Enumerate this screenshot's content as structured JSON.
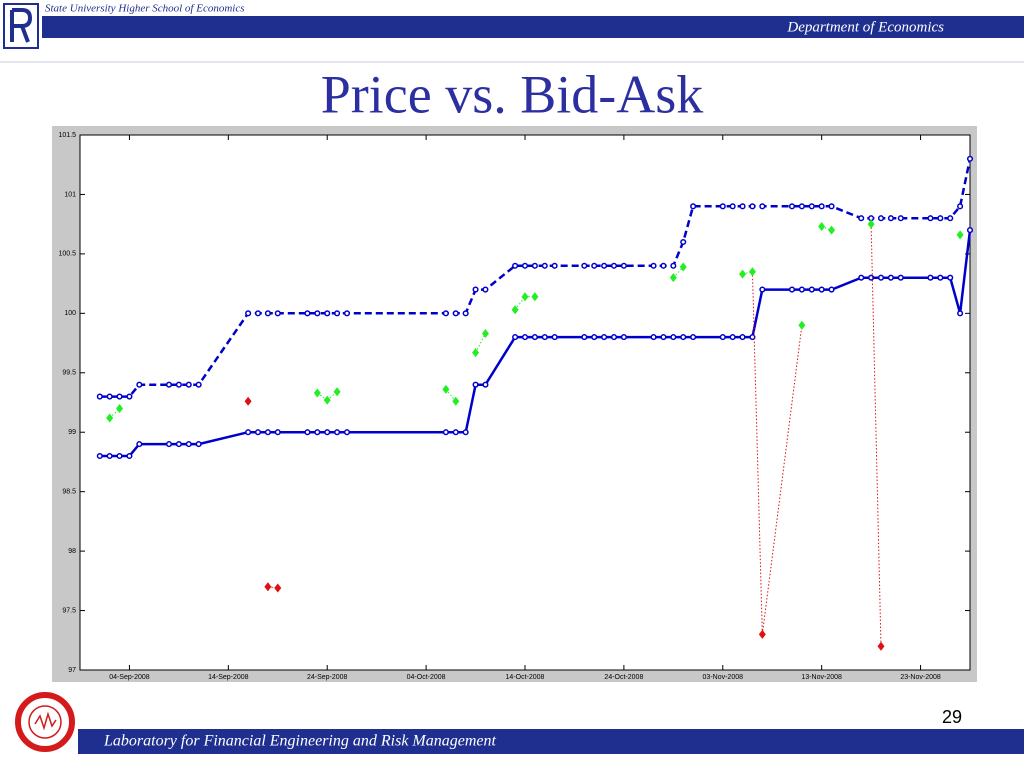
{
  "header": {
    "institution": "State University Higher School of Economics",
    "department": "Department of Economics"
  },
  "title": "Price vs. Bid-Ask",
  "chart_data": {
    "type": "line",
    "xlim": [
      "2008-08-30",
      "2008-11-28"
    ],
    "ylim": [
      97,
      101.5
    ],
    "yticks": [
      97,
      97.5,
      98,
      98.5,
      99,
      99.5,
      100,
      100.5,
      101,
      101.5
    ],
    "xticks": [
      {
        "value": "2008-09-04",
        "label": "04-Sep-2008"
      },
      {
        "value": "2008-09-14",
        "label": "14-Sep-2008"
      },
      {
        "value": "2008-09-24",
        "label": "24-Sep-2008"
      },
      {
        "value": "2008-10-04",
        "label": "04-Oct-2008"
      },
      {
        "value": "2008-10-14",
        "label": "14-Oct-2008"
      },
      {
        "value": "2008-10-24",
        "label": "24-Oct-2008"
      },
      {
        "value": "2008-11-03",
        "label": "03-Nov-2008"
      },
      {
        "value": "2008-11-13",
        "label": "13-Nov-2008"
      },
      {
        "value": "2008-11-23",
        "label": "23-Nov-2008"
      }
    ],
    "grid": false,
    "x": [
      "2008-09-01",
      "2008-09-02",
      "2008-09-03",
      "2008-09-04",
      "2008-09-05",
      "2008-09-08",
      "2008-09-09",
      "2008-09-10",
      "2008-09-11",
      "2008-09-16",
      "2008-09-17",
      "2008-09-18",
      "2008-09-19",
      "2008-09-22",
      "2008-09-23",
      "2008-09-24",
      "2008-09-25",
      "2008-09-26",
      "2008-10-06",
      "2008-10-07",
      "2008-10-08",
      "2008-10-09",
      "2008-10-10",
      "2008-10-13",
      "2008-10-14",
      "2008-10-15",
      "2008-10-16",
      "2008-10-17",
      "2008-10-20",
      "2008-10-21",
      "2008-10-22",
      "2008-10-23",
      "2008-10-24",
      "2008-10-27",
      "2008-10-28",
      "2008-10-29",
      "2008-10-30",
      "2008-10-31",
      "2008-11-03",
      "2008-11-04",
      "2008-11-05",
      "2008-11-06",
      "2008-11-07",
      "2008-11-10",
      "2008-11-11",
      "2008-11-12",
      "2008-11-13",
      "2008-11-14",
      "2008-11-17",
      "2008-11-18",
      "2008-11-19",
      "2008-11-20",
      "2008-11-21",
      "2008-11-24",
      "2008-11-25",
      "2008-11-26",
      "2008-11-27",
      "2008-11-28"
    ],
    "series": [
      {
        "color": "#0000cc",
        "style": "solid",
        "marker": "circle",
        "values": [
          98.8,
          98.8,
          98.8,
          98.8,
          98.9,
          98.9,
          98.9,
          98.9,
          98.9,
          99,
          99,
          99,
          99,
          99,
          99,
          99,
          99,
          99,
          99,
          99,
          99,
          99.4,
          99.4,
          99.8,
          99.8,
          99.8,
          99.8,
          99.8,
          99.8,
          99.8,
          99.8,
          99.8,
          99.8,
          99.8,
          99.8,
          99.8,
          99.8,
          99.8,
          99.8,
          99.8,
          99.8,
          99.8,
          100.2,
          100.2,
          100.2,
          100.2,
          100.2,
          100.2,
          100.3,
          100.3,
          100.3,
          100.3,
          100.3,
          100.3,
          100.3,
          100.3,
          100,
          100.7
        ]
      },
      {
        "color": "#0000cc",
        "style": "dashed",
        "marker": "circle",
        "values": [
          99.3,
          99.3,
          99.3,
          99.3,
          99.4,
          99.4,
          99.4,
          99.4,
          99.4,
          100,
          100,
          100,
          100,
          100,
          100,
          100,
          100,
          100,
          100,
          100,
          100,
          100.2,
          100.2,
          100.4,
          100.4,
          100.4,
          100.4,
          100.4,
          100.4,
          100.4,
          100.4,
          100.4,
          100.4,
          100.4,
          100.4,
          100.4,
          100.6,
          100.9,
          100.9,
          100.9,
          100.9,
          100.9,
          100.9,
          100.9,
          100.9,
          100.9,
          100.9,
          100.9,
          100.8,
          100.8,
          100.8,
          100.8,
          100.8,
          100.8,
          100.8,
          100.8,
          100.9,
          101.3
        ]
      },
      {
        "style": "dotted",
        "marker": "diamond",
        "x": [
          "2008-09-02",
          "2008-09-03",
          null,
          "2008-09-16",
          null,
          "2008-09-18",
          "2008-09-19",
          null,
          "2008-09-23",
          "2008-09-24",
          "2008-09-25",
          null,
          "2008-10-06",
          "2008-10-07",
          null,
          "2008-10-09",
          "2008-10-10",
          null,
          "2008-10-13",
          "2008-10-14",
          "2008-10-15",
          null,
          "2008-10-29",
          "2008-10-30",
          null,
          "2008-11-05",
          "2008-11-06",
          "2008-11-07",
          "2008-11-11",
          null,
          "2008-11-13",
          "2008-11-14",
          null,
          "2008-11-18",
          "2008-11-19",
          null,
          "2008-11-27"
        ],
        "values": [
          99.12,
          99.2,
          null,
          99.26,
          null,
          97.7,
          97.69,
          null,
          99.33,
          99.27,
          99.34,
          null,
          99.36,
          99.26,
          null,
          99.67,
          99.83,
          null,
          100.03,
          100.14,
          100.14,
          null,
          100.3,
          100.39,
          null,
          100.33,
          100.35,
          97.3,
          99.9,
          null,
          100.73,
          100.7,
          null,
          100.75,
          97.2,
          null,
          100.66
        ],
        "colors": [
          "#22ee22",
          "#22ee22",
          null,
          "#dd1111",
          null,
          "#dd1111",
          "#dd1111",
          null,
          "#22ee22",
          "#22ee22",
          "#22ee22",
          null,
          "#22ee22",
          "#22ee22",
          null,
          "#22ee22",
          "#22ee22",
          null,
          "#22ee22",
          "#22ee22",
          "#22ee22",
          null,
          "#22ee22",
          "#22ee22",
          null,
          "#22ee22",
          "#22ee22",
          "#dd1111",
          "#22ee22",
          null,
          "#22ee22",
          "#22ee22",
          null,
          "#22ee22",
          "#dd1111",
          null,
          "#22ee22"
        ]
      }
    ]
  },
  "footer": {
    "lab": "Laboratory for Financial Engineering and Risk Management",
    "page_number": "29"
  }
}
